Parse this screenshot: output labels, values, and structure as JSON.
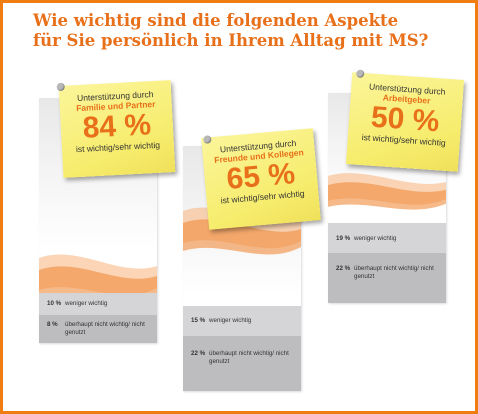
{
  "title": {
    "line1": "Wie wichtig sind die folgenden Aspekte",
    "line2": "für Sie persönlich in Ihrem Alltag mit MS?"
  },
  "colors": {
    "accent": "#e8701a",
    "frame": "#f07d12",
    "note": "#f6ec6c",
    "band1": "#d5d5d7",
    "band2": "#bdbdc0"
  },
  "chart_data": {
    "type": "table",
    "unit": "%",
    "items": [
      {
        "label_line1": "Unterstützung durch",
        "label_line2": "Familie und Partner",
        "value_text": "84 %",
        "value": 84,
        "value_caption": "ist wichtig/sehr wichtig",
        "rows": [
          {
            "pct_text": "10 %",
            "pct": 10,
            "label": "weniger wichtig"
          },
          {
            "pct_text": "8 %",
            "pct": 8,
            "label": "überhaupt nicht wichtig/ nicht genutzt"
          }
        ]
      },
      {
        "label_line1": "Unterstützung durch",
        "label_line2": "Freunde und Kollegen",
        "value_text": "65 %",
        "value": 65,
        "value_caption": "ist wichtig/sehr wichtig",
        "rows": [
          {
            "pct_text": "15 %",
            "pct": 15,
            "label": "weniger wichtig"
          },
          {
            "pct_text": "22 %",
            "pct": 22,
            "label": "überhaupt nicht wichtig/ nicht genutzt"
          }
        ]
      },
      {
        "label_line1": "Unterstützung durch",
        "label_line2": "Arbeitgeber",
        "value_text": "50 %",
        "value": 50,
        "value_caption": "ist wichtig/sehr wichtig",
        "rows": [
          {
            "pct_text": "19 %",
            "pct": 19,
            "label": "weniger wichtig"
          },
          {
            "pct_text": "22 %",
            "pct": 22,
            "label": "überhaupt nicht wichtig/ nicht genutzt"
          }
        ]
      }
    ]
  }
}
